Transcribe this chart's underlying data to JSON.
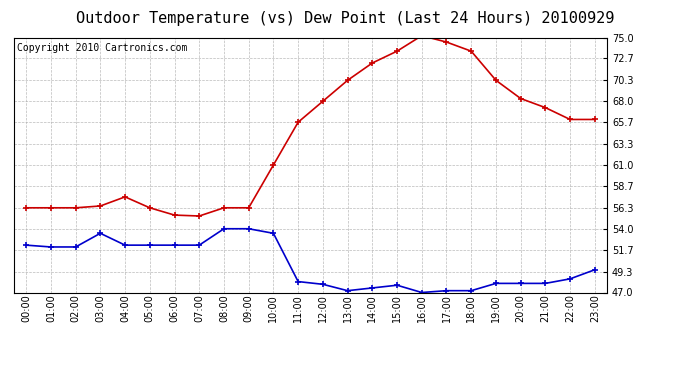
{
  "title": "Outdoor Temperature (vs) Dew Point (Last 24 Hours) 20100929",
  "copyright": "Copyright 2010 Cartronics.com",
  "hours": [
    "00:00",
    "01:00",
    "02:00",
    "03:00",
    "04:00",
    "05:00",
    "06:00",
    "07:00",
    "08:00",
    "09:00",
    "10:00",
    "11:00",
    "12:00",
    "13:00",
    "14:00",
    "15:00",
    "16:00",
    "17:00",
    "18:00",
    "19:00",
    "20:00",
    "21:00",
    "22:00",
    "23:00"
  ],
  "temp": [
    56.3,
    56.3,
    56.3,
    56.5,
    57.5,
    56.3,
    55.5,
    55.4,
    56.3,
    56.3,
    61.0,
    65.7,
    68.0,
    70.3,
    72.2,
    73.5,
    75.2,
    74.5,
    73.5,
    70.3,
    68.3,
    67.3,
    66.0,
    66.0
  ],
  "dew": [
    52.2,
    52.0,
    52.0,
    53.5,
    52.2,
    52.2,
    52.2,
    52.2,
    54.0,
    54.0,
    53.5,
    48.2,
    47.9,
    47.2,
    47.5,
    47.8,
    47.0,
    47.2,
    47.2,
    48.0,
    48.0,
    48.0,
    48.5,
    49.5
  ],
  "ylim_min": 47.0,
  "ylim_max": 75.0,
  "yticks": [
    47.0,
    49.3,
    51.7,
    54.0,
    56.3,
    58.7,
    61.0,
    63.3,
    65.7,
    68.0,
    70.3,
    72.7,
    75.0
  ],
  "temp_color": "#cc0000",
  "dew_color": "#0000cc",
  "grid_color": "#aaaaaa",
  "bg_color": "#ffffff",
  "plot_bg_color": "#ffffff",
  "title_fontsize": 11,
  "copyright_fontsize": 7,
  "tick_fontsize": 7,
  "ytick_fontsize": 7
}
